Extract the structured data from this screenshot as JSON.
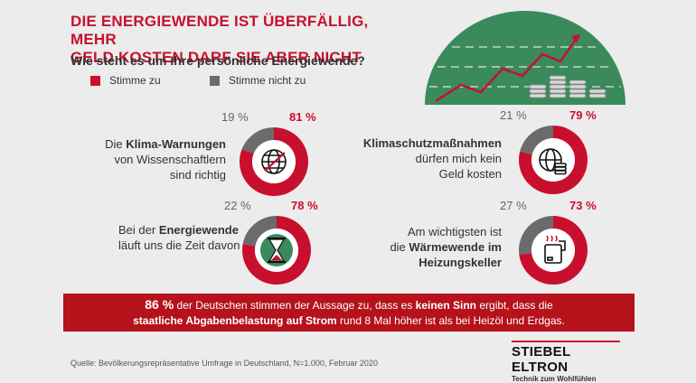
{
  "title_line1": "DIE ENERGIEWENDE IST ÜBERFÄLLIG, MEHR",
  "title_line2": "GELD KOSTEN DARF SIE ABER NICHT",
  "subtitle": "Wie steht es um Ihre persönliche Energiewende?",
  "legend": {
    "agree": "Stimme zu",
    "disagree": "Stimme nicht zu"
  },
  "colors": {
    "agree": "#c8102e",
    "disagree": "#6b6b6b",
    "banner": "#b5121b",
    "header_art": "#3a8a5c"
  },
  "questions": {
    "q1": {
      "pre": "Die ",
      "bold": "Klima-Warnungen",
      "line2": "von Wissenschaftlern",
      "line3": "sind richtig",
      "icon": "globe-thermometer-icon"
    },
    "q2": {
      "bold": "Klimaschutzmaßnahmen",
      "line2": "dürfen mich kein",
      "line3": "Geld kosten",
      "icon": "globe-coins-icon"
    },
    "q3": {
      "pre": "Bei der ",
      "bold": "Energiewende",
      "line2": "läuft uns die Zeit davon",
      "icon": "hourglass-icon"
    },
    "q4": {
      "line1": "Am wichtigsten ist",
      "pre": "die ",
      "bold": "Wärmewende im",
      "line3": "Heizungskeller",
      "icon": "heater-icon"
    }
  },
  "labels": {
    "q1_yes": "81 %",
    "q1_no": "19 %",
    "q2_yes": "79 %",
    "q2_no": "21 %",
    "q3_yes": "78 %",
    "q3_no": "22 %",
    "q4_yes": "73 %",
    "q4_no": "27 %"
  },
  "chart_data": [
    {
      "type": "pie",
      "categories": [
        "Stimme zu",
        "Stimme nicht zu"
      ],
      "values": [
        81,
        19
      ]
    },
    {
      "type": "pie",
      "categories": [
        "Stimme zu",
        "Stimme nicht zu"
      ],
      "values": [
        79,
        21
      ]
    },
    {
      "type": "pie",
      "categories": [
        "Stimme zu",
        "Stimme nicht zu"
      ],
      "values": [
        78,
        22
      ]
    },
    {
      "type": "pie",
      "categories": [
        "Stimme zu",
        "Stimme nicht zu"
      ],
      "values": [
        73,
        27
      ]
    }
  ],
  "banner": {
    "pct": "86 %",
    "t1": " der Deutschen stimmen der Aussage zu, dass es ",
    "b1": "keinen Sinn",
    "t2": " ergibt, dass die",
    "b2": "staatliche Abgabenbelastung auf Strom",
    "t3": " rund 8 Mal höher ist als bei Heizöl und Erdgas."
  },
  "source": "Quelle: Bevölkerungsrepräsentative Umfrage in Deutschland, N=1.000, Februar 2020",
  "brand": {
    "name": "STIEBEL ELTRON",
    "tagline": "Technik zum Wohlfühlen"
  }
}
